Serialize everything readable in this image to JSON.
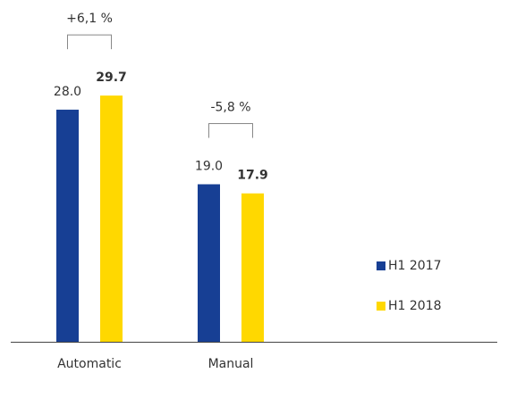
{
  "chart_data": {
    "type": "bar",
    "categories": [
      "Automatic",
      "Manual"
    ],
    "series": [
      {
        "name": "H1 2017",
        "color": "#173f94",
        "values": [
          28.0,
          19.0
        ],
        "value_labels": [
          "28.0",
          "19.0"
        ]
      },
      {
        "name": "H1 2018",
        "color": "#ffd800",
        "values": [
          29.7,
          17.9
        ],
        "value_labels": [
          "29.7",
          "17.9"
        ]
      }
    ],
    "annotations": [
      "+6,1 %",
      "-5,8 %"
    ]
  }
}
